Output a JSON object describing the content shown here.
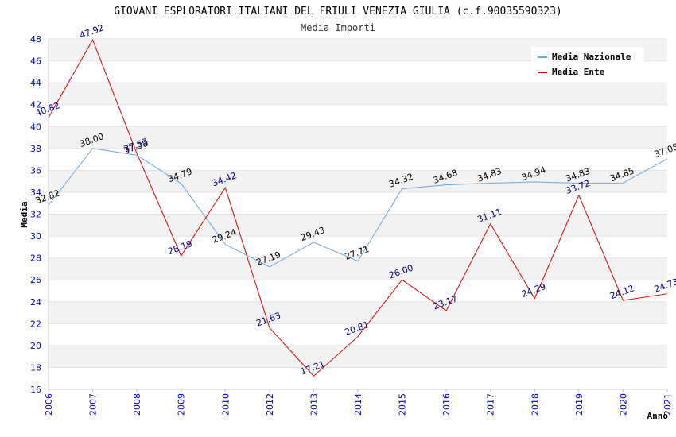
{
  "chart_data": {
    "type": "line",
    "title": "GIOVANI ESPLORATORI ITALIANI DEL FRIULI VENEZIA GIULIA (c.f.90035590323)",
    "subtitle": "Media Importi",
    "xlabel": "Anno",
    "ylabel": "Media",
    "ylim": [
      16,
      48
    ],
    "yticks": [
      16,
      18,
      20,
      22,
      24,
      26,
      28,
      30,
      32,
      34,
      36,
      38,
      40,
      42,
      44,
      46,
      48
    ],
    "categories": [
      "2006",
      "2007",
      "2008",
      "2009",
      "2010",
      "2012",
      "2013",
      "2014",
      "2015",
      "2016",
      "2017",
      "2018",
      "2019",
      "2020",
      "2021"
    ],
    "grid": true,
    "legend_position": "top-right",
    "series": [
      {
        "name": "Media Nazionale",
        "color": "#6fa8dc",
        "values": [
          32.82,
          38.0,
          37.38,
          34.79,
          29.24,
          27.19,
          29.43,
          27.71,
          34.32,
          34.68,
          34.83,
          34.94,
          34.83,
          34.85,
          37.05
        ],
        "labels": [
          "32.82",
          "38.00",
          "37.38",
          "34.79",
          "29.24",
          "27.19",
          "29.43",
          "27.71",
          "34.32",
          "34.68",
          "34.83",
          "34.94",
          "34.83",
          "34.85",
          "37.05"
        ]
      },
      {
        "name": "Media Ente",
        "color": "#dd0000",
        "values": [
          40.82,
          47.92,
          37.53,
          28.19,
          34.42,
          21.63,
          17.21,
          20.81,
          26.0,
          23.17,
          31.11,
          24.29,
          33.72,
          24.12,
          24.73
        ],
        "labels": [
          "40.82",
          "47.92",
          "37.53",
          "28.19",
          "34.42",
          "21.63",
          "17.21",
          "20.81",
          "26.00",
          "23.17",
          "31.11",
          "24.29",
          "33.72",
          "24.12",
          "24.73"
        ]
      }
    ]
  }
}
